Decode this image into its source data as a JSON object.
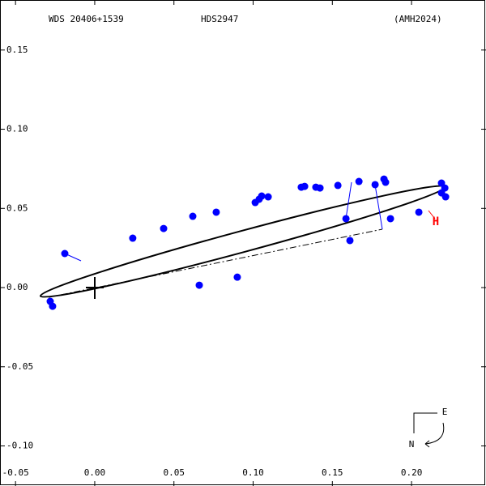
{
  "chart_data": {
    "type": "scatter",
    "wds": "WDS 20406+1539",
    "discoverer": "HDS2947",
    "reference": "(AMH2024)",
    "marker": "H",
    "east": "E",
    "north": "N",
    "color": "#0000ff",
    "xlim": [
      -0.0598,
      0.247
    ],
    "ylim": [
      -0.1253,
      0.1816
    ],
    "xticks": [
      {
        "value": -0.05,
        "label": "-0.05"
      },
      {
        "value": 0,
        "label": "0.00"
      },
      {
        "value": 0.05,
        "label": "0.05"
      },
      {
        "value": 0.1,
        "label": "0.10"
      },
      {
        "value": 0.15,
        "label": "0.15"
      },
      {
        "value": 0.2,
        "label": "0.20"
      }
    ],
    "yticks": [
      {
        "value": -0.1,
        "label": "-0.10"
      },
      {
        "value": -0.05,
        "label": "-0.05"
      },
      {
        "value": 0,
        "label": "0.00"
      },
      {
        "value": 0.05,
        "label": "0.05"
      },
      {
        "value": 0.1,
        "label": "0.10"
      },
      {
        "value": 0.15,
        "label": "0.15"
      }
    ],
    "x": [
      -0.0189,
      -0.0281,
      -0.0266,
      0.024,
      0.0435,
      0.0619,
      0.0767,
      0.1013,
      0.1038,
      0.1054,
      0.1095,
      0.1304,
      0.1325,
      0.1396,
      0.1422,
      0.1535,
      0.1668,
      0.1826,
      0.1836,
      0.177,
      0.1586,
      0.1867,
      0.1611,
      0.2046,
      0.2189,
      0.221,
      0.2215,
      0.2189,
      0.066,
      0.09
    ],
    "values": [
      0.0215,
      -0.0087,
      -0.0118,
      0.0312,
      0.0373,
      0.045,
      0.0476,
      0.0537,
      0.0558,
      0.0578,
      0.0573,
      0.0634,
      0.0639,
      0.0634,
      0.0629,
      0.0645,
      0.067,
      0.0685,
      0.0665,
      0.065,
      0.0435,
      0.0435,
      0.0297,
      0.0476,
      0.066,
      0.0629,
      0.0573,
      0.0598,
      0.0015,
      0.0066
    ]
  }
}
